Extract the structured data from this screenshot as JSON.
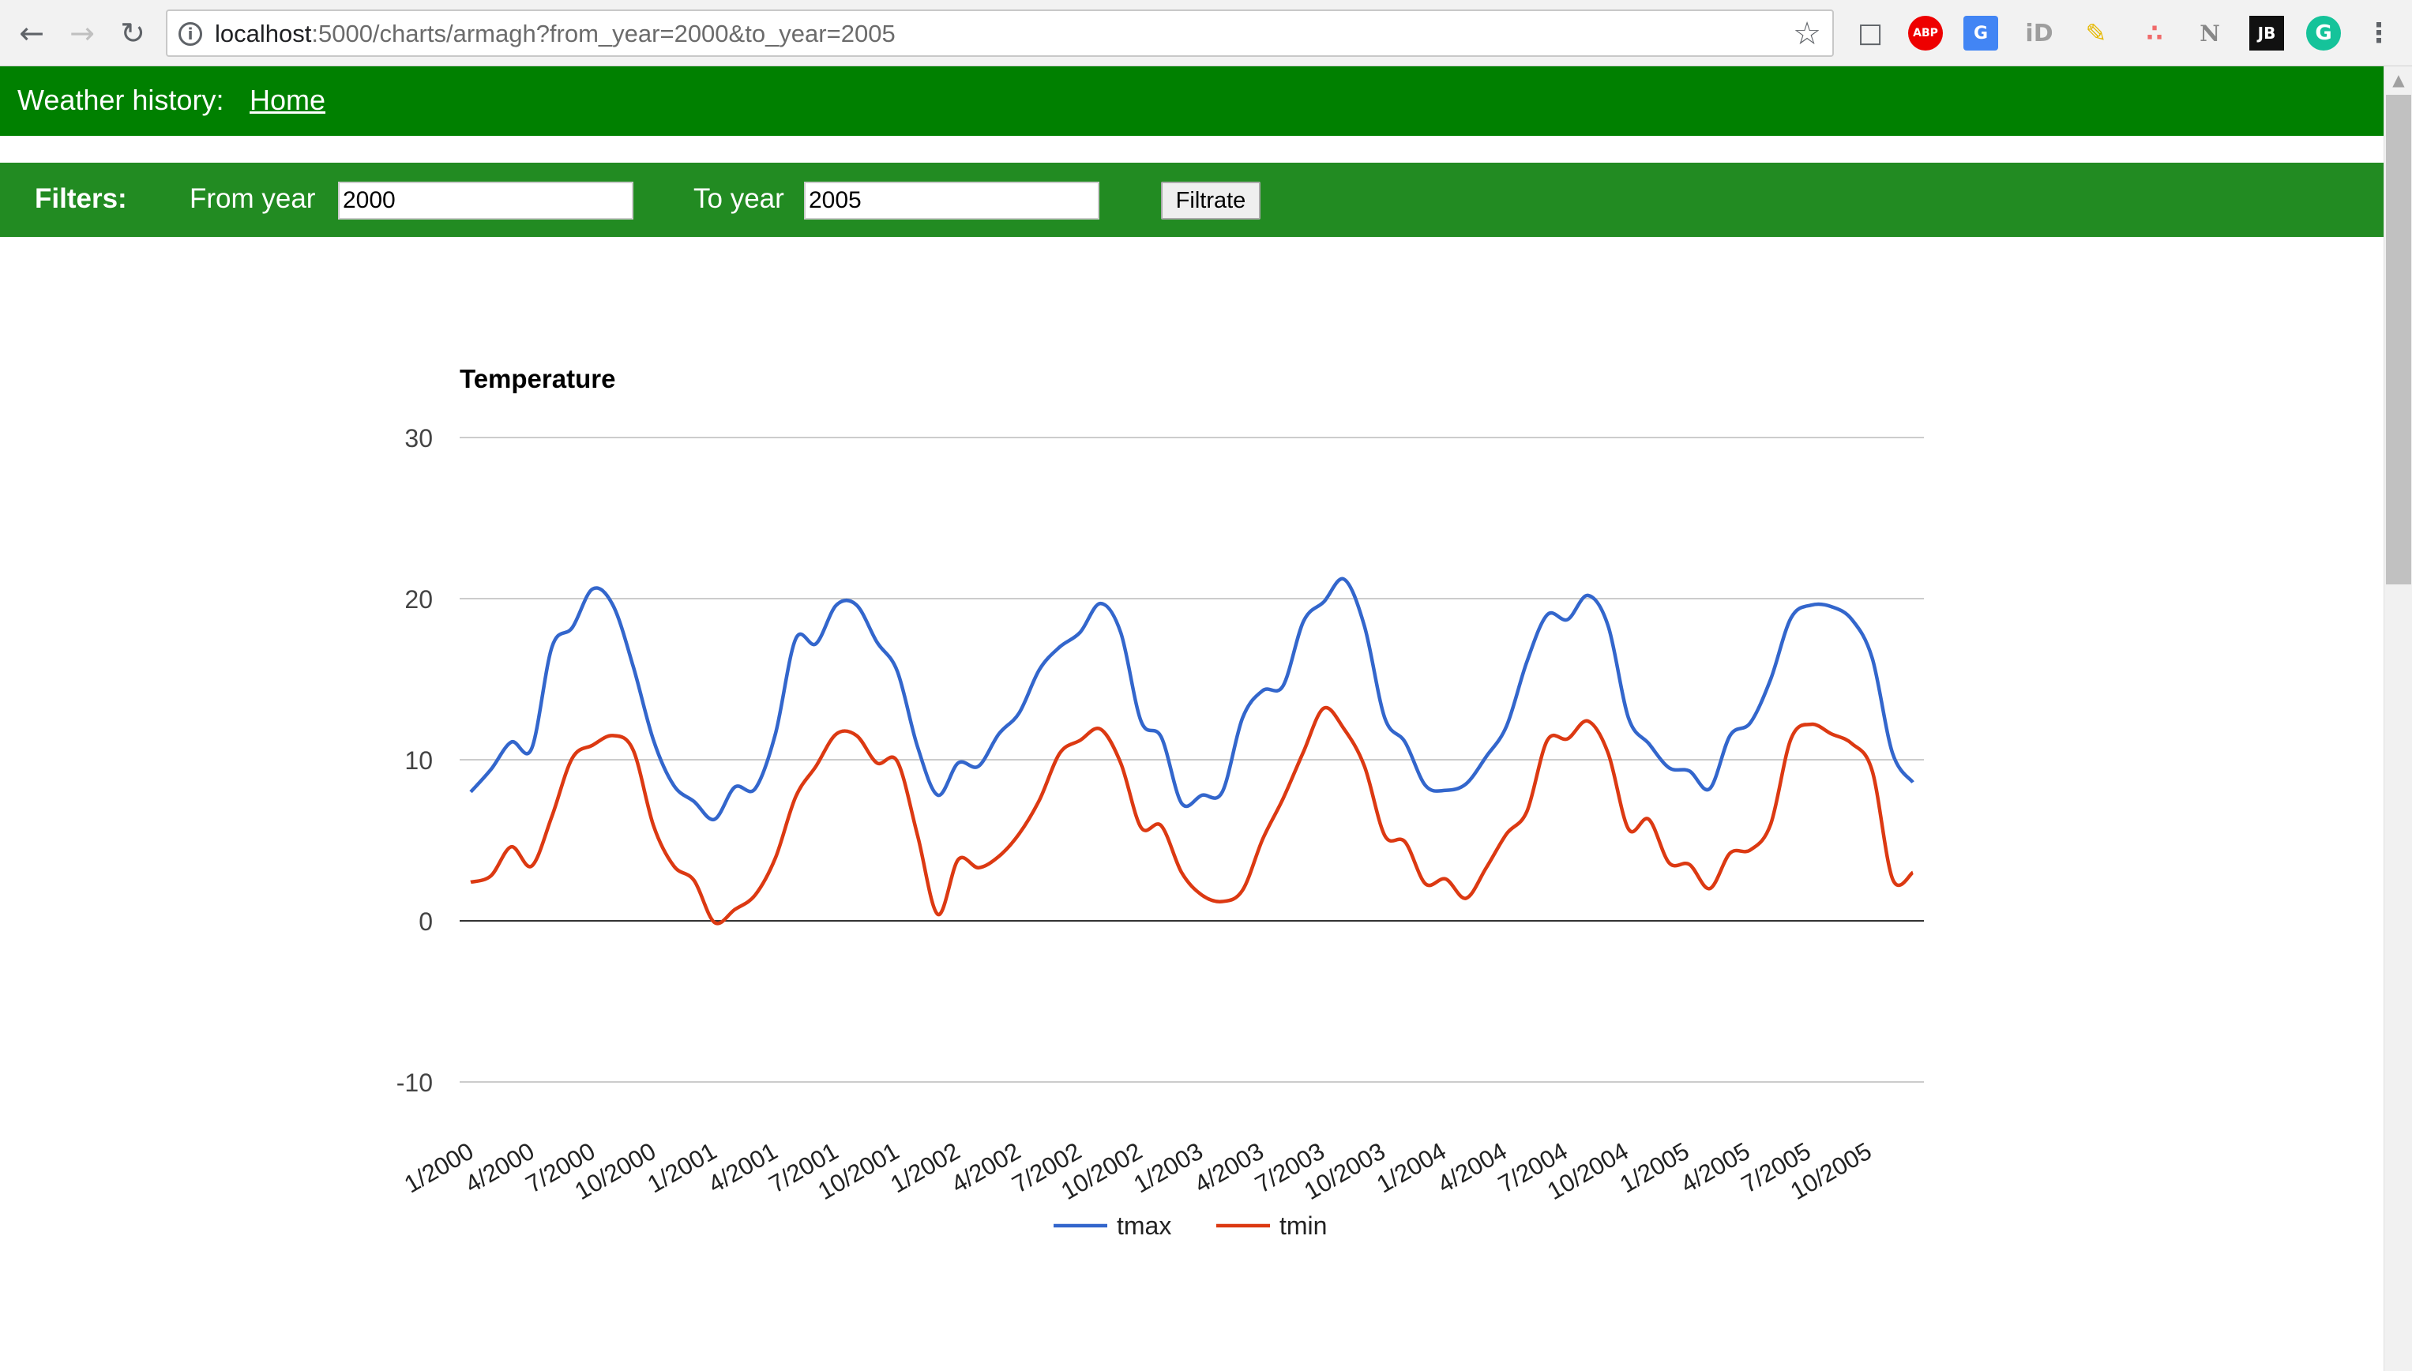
{
  "browser": {
    "url_host": "localhost",
    "url_path": ":5000/charts/armagh?from_year=2000&to_year=2005",
    "icons": [
      "back-icon",
      "forward-icon",
      "reload-icon",
      "info-icon",
      "star-icon",
      "cast-icon",
      "adblock-icon",
      "translate-icon",
      "id-icon",
      "broom-icon",
      "asana-icon",
      "notion-icon",
      "jetbrains-icon",
      "grammarly-icon",
      "menu-icon"
    ],
    "ext": {
      "abp": "ABP",
      "translate": "G",
      "id": "iD",
      "notion": "N",
      "jb": "JB",
      "grammarly": "G"
    }
  },
  "header": {
    "title": "Weather history:",
    "home_link": "Home",
    "color": "#008000"
  },
  "filters": {
    "label": "Filters:",
    "from_label": "From year",
    "from_value": "2000",
    "to_label": "To year",
    "to_value": "2005",
    "button": "Filtrate",
    "color": "#228b22"
  },
  "chart_data": {
    "type": "line",
    "title": "Temperature",
    "xlabel": "",
    "ylabel": "",
    "ylim": [
      -10,
      30
    ],
    "yticks": [
      30,
      20,
      10,
      0,
      -10
    ],
    "grid": true,
    "legend": "bottom",
    "x_tick_labels": [
      "1/2000",
      "4/2000",
      "7/2000",
      "10/2000",
      "1/2001",
      "4/2001",
      "7/2001",
      "10/2001",
      "1/2002",
      "4/2002",
      "7/2002",
      "10/2002",
      "1/2003",
      "4/2003",
      "7/2003",
      "10/2003",
      "1/2004",
      "4/2004",
      "7/2004",
      "10/2004",
      "1/2005",
      "4/2005",
      "7/2005",
      "10/2005"
    ],
    "series": [
      {
        "name": "tmax",
        "color": "#3366cc",
        "values": [
          8.0,
          9.4,
          11.1,
          10.7,
          17.0,
          18.2,
          20.6,
          19.6,
          15.8,
          11.2,
          8.4,
          7.4,
          6.3,
          8.3,
          8.2,
          11.6,
          17.5,
          17.2,
          19.6,
          19.6,
          17.3,
          15.5,
          10.8,
          7.8,
          9.8,
          9.6,
          11.6,
          12.9,
          15.6,
          17.0,
          17.9,
          19.7,
          17.9,
          12.4,
          11.4,
          7.3,
          7.8,
          8.0,
          12.6,
          14.3,
          14.6,
          18.6,
          19.8,
          21.2,
          18.3,
          12.6,
          11.1,
          8.4,
          8.1,
          8.5,
          10.2,
          12.1,
          16.1,
          19.0,
          18.7,
          20.2,
          18.3,
          12.6,
          11.0,
          9.5,
          9.3,
          8.2,
          11.5,
          12.3,
          15.0,
          18.8,
          19.6,
          19.5,
          18.7,
          16.3,
          10.4,
          8.6
        ]
      },
      {
        "name": "tmin",
        "color": "#dc3912",
        "values": [
          2.4,
          2.8,
          4.6,
          3.4,
          6.5,
          10.1,
          10.9,
          11.5,
          10.6,
          5.9,
          3.4,
          2.5,
          -0.1,
          0.7,
          1.6,
          3.9,
          7.7,
          9.6,
          11.6,
          11.5,
          9.8,
          9.9,
          5.3,
          0.4,
          3.8,
          3.3,
          4.0,
          5.4,
          7.5,
          10.4,
          11.2,
          11.9,
          9.8,
          5.8,
          5.9,
          3.0,
          1.6,
          1.2,
          1.9,
          5.1,
          7.6,
          10.5,
          13.2,
          11.9,
          9.6,
          5.3,
          4.9,
          2.3,
          2.6,
          1.4,
          3.3,
          5.4,
          6.8,
          11.2,
          11.3,
          12.4,
          10.4,
          5.7,
          6.3,
          3.6,
          3.5,
          2.0,
          4.2,
          4.4,
          6.0,
          11.3,
          12.2,
          11.6,
          11.0,
          9.3,
          2.6,
          3.0
        ]
      }
    ]
  }
}
